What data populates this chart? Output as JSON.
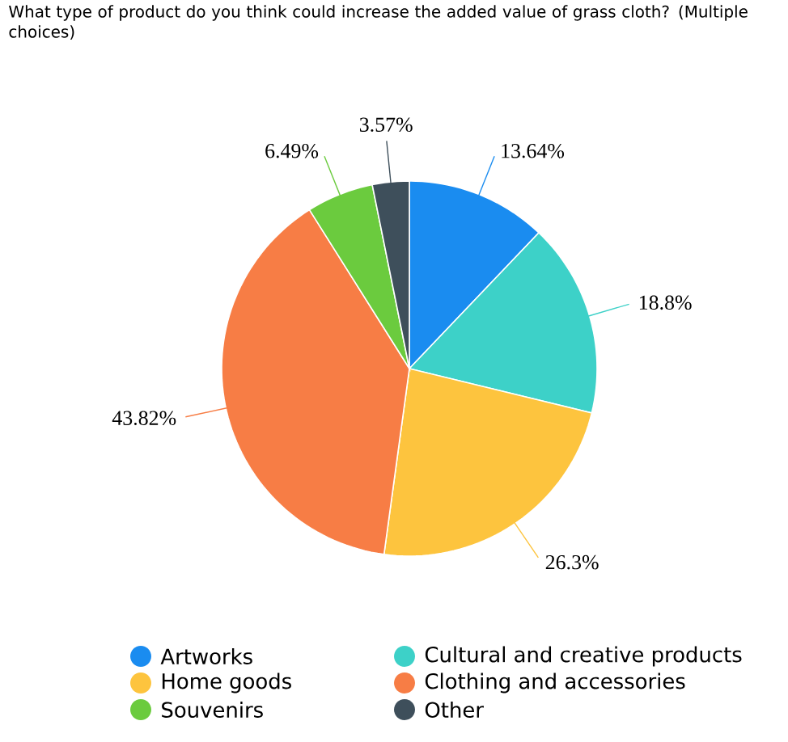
{
  "chart_data": {
    "type": "pie",
    "title": "What type of product do you think could increase the added value of grass cloth? (Multiple choices)",
    "categories": [
      "Artworks",
      "Cultural and creative products",
      "Home goods",
      "Clothing and accessories",
      "Souvenirs",
      "Other"
    ],
    "values": [
      13.64,
      18.8,
      26.3,
      43.82,
      6.49,
      3.57
    ],
    "value_labels": [
      "13.64%",
      "18.8%",
      "26.3%",
      "43.82%",
      "6.49%",
      "3.57%"
    ],
    "colors": [
      "#1a8cf0",
      "#3dd1c8",
      "#fdc43e",
      "#f77d45",
      "#6bcb3e",
      "#3e4f5b"
    ],
    "legend": "bottom"
  }
}
